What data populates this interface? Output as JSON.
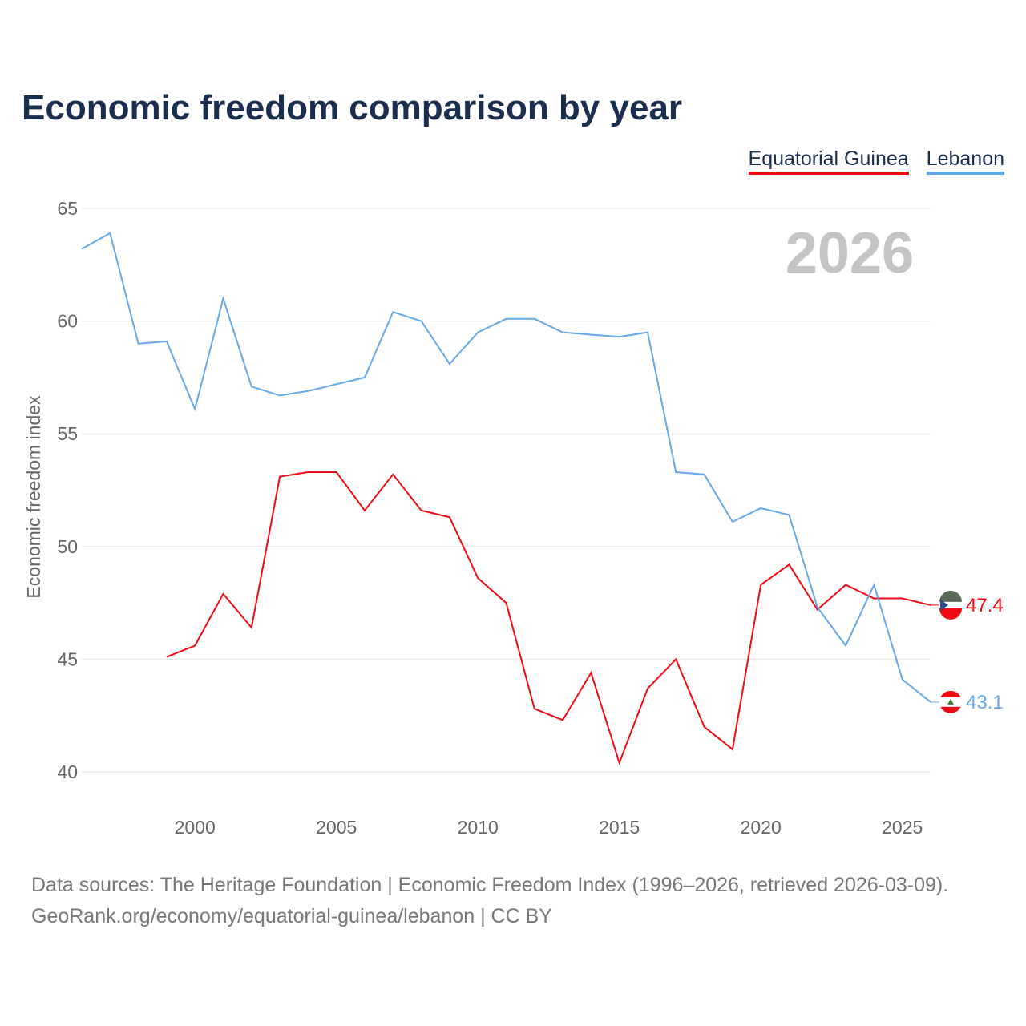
{
  "title": "Economic freedom comparison by year",
  "footer": {
    "line1": "Data sources: The Heritage Foundation | Economic Freedom Index (1996–2026, retrieved 2026-03-09).",
    "line2": "GeoRank.org/economy/equatorial-guinea/lebanon | CC BY"
  },
  "chart_data": {
    "type": "line",
    "title": "Economic freedom comparison by year",
    "ylabel": "Economic freedom index",
    "xlabel": "",
    "xlim": [
      1996,
      2026
    ],
    "ylim": [
      40,
      65
    ],
    "yticks": [
      40,
      45,
      50,
      55,
      60,
      65
    ],
    "xticks": [
      2000,
      2005,
      2010,
      2015,
      2020,
      2025
    ],
    "grid": true,
    "legend_position": "top-right",
    "year_label": "2026",
    "series": [
      {
        "name": "Equatorial Guinea",
        "color": "#f00a14",
        "end_label": "47.4",
        "x": [
          1999,
          2000,
          2001,
          2002,
          2003,
          2004,
          2005,
          2006,
          2007,
          2008,
          2009,
          2010,
          2011,
          2012,
          2013,
          2014,
          2015,
          2016,
          2017,
          2018,
          2019,
          2020,
          2021,
          2022,
          2023,
          2024,
          2025,
          2026
        ],
        "values": [
          45.1,
          45.6,
          47.9,
          46.4,
          53.1,
          53.3,
          53.3,
          51.6,
          53.2,
          51.6,
          51.3,
          48.6,
          47.5,
          42.8,
          42.3,
          44.4,
          40.4,
          43.7,
          45.0,
          42.0,
          41.0,
          48.3,
          49.2,
          47.2,
          48.3,
          47.7,
          47.7,
          47.4
        ]
      },
      {
        "name": "Lebanon",
        "color": "#63a8e8",
        "end_label": "43.1",
        "x": [
          1996,
          1997,
          1998,
          1999,
          2000,
          2001,
          2002,
          2003,
          2004,
          2005,
          2006,
          2007,
          2008,
          2009,
          2010,
          2011,
          2012,
          2013,
          2014,
          2015,
          2016,
          2017,
          2018,
          2019,
          2020,
          2021,
          2022,
          2023,
          2024,
          2025,
          2026
        ],
        "values": [
          63.2,
          63.9,
          59.0,
          59.1,
          56.1,
          61.0,
          57.1,
          56.7,
          56.9,
          57.2,
          57.5,
          60.4,
          60.0,
          58.1,
          59.5,
          60.1,
          60.1,
          59.5,
          59.4,
          59.3,
          59.5,
          53.3,
          53.2,
          51.1,
          51.7,
          51.4,
          47.3,
          45.6,
          48.3,
          44.1,
          43.1
        ]
      }
    ]
  }
}
